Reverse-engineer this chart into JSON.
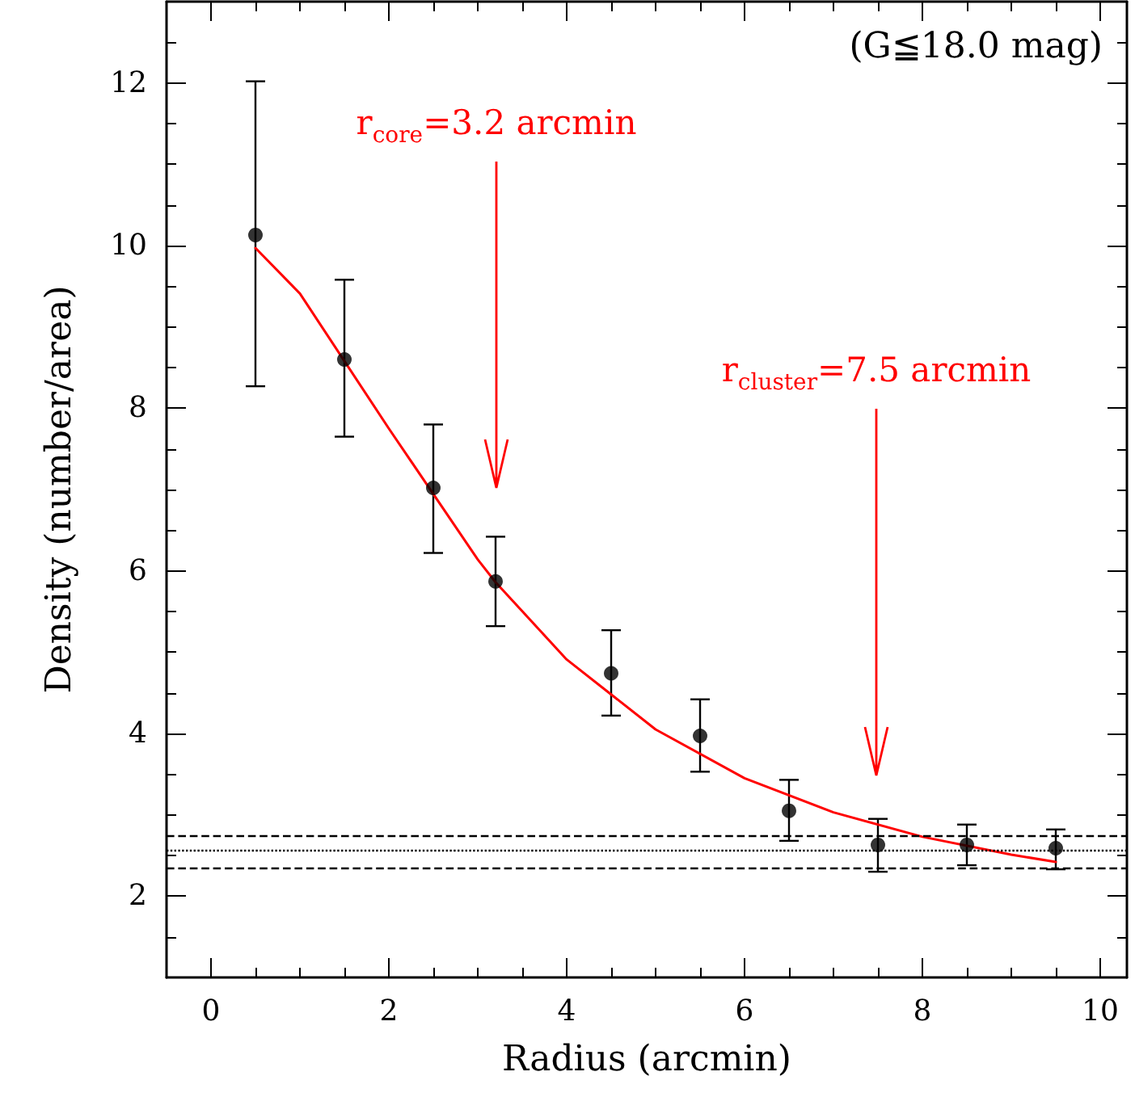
{
  "chart_data": {
    "type": "scatter",
    "xlabel": "Radius (arcmin)",
    "ylabel": "Density (number/area)",
    "xlim": [
      -0.5,
      10.3
    ],
    "xticks": [
      0,
      2,
      4,
      6,
      8,
      10
    ],
    "ylim": [
      1,
      13
    ],
    "yticks": [
      2,
      4,
      6,
      8,
      10,
      12
    ],
    "grid": false,
    "series": [
      {
        "color": "#000000",
        "marker": "circle",
        "x": [
          0.5,
          1.5,
          2.5,
          3.2,
          4.5,
          5.5,
          6.5,
          7.5,
          8.5,
          9.5
        ],
        "values": [
          10.13,
          8.6,
          7.02,
          5.87,
          4.74,
          3.97,
          3.05,
          2.63,
          2.63,
          2.59
        ],
        "errors": [
          [
            8.27,
            12.02
          ],
          [
            7.65,
            9.58
          ],
          [
            6.22,
            7.8
          ],
          [
            5.32,
            6.42
          ],
          [
            4.22,
            5.27
          ],
          [
            3.53,
            4.42
          ],
          [
            2.68,
            3.43
          ],
          [
            2.3,
            2.95
          ],
          [
            2.38,
            2.88
          ],
          [
            2.33,
            2.82
          ]
        ]
      },
      {
        "type": "line",
        "color": "#ff0000",
        "marker": "none",
        "line_style": "solid",
        "x": [
          0.5,
          1,
          2,
          3,
          3.2,
          4,
          5,
          6,
          7,
          8,
          9,
          9.5
        ],
        "values": [
          9.97,
          9.41,
          7.75,
          6.14,
          5.86,
          4.91,
          4.05,
          3.45,
          3.03,
          2.73,
          2.51,
          2.42
        ]
      }
    ],
    "ref_lines": [
      {
        "axis": "y",
        "value": 2.75,
        "color": "#000000",
        "line_style": "dashed"
      },
      {
        "axis": "y",
        "value": 2.56,
        "color": "#000000",
        "line_style": "dotted"
      },
      {
        "axis": "y",
        "value": 2.35,
        "color": "#000000",
        "line_style": "dashed"
      }
    ],
    "annotations": [
      "(G≦18.0 mag)",
      "r$_{core}$=3.2 arcmin",
      "r$_{cluster}$=7.5 arcmin"
    ]
  }
}
